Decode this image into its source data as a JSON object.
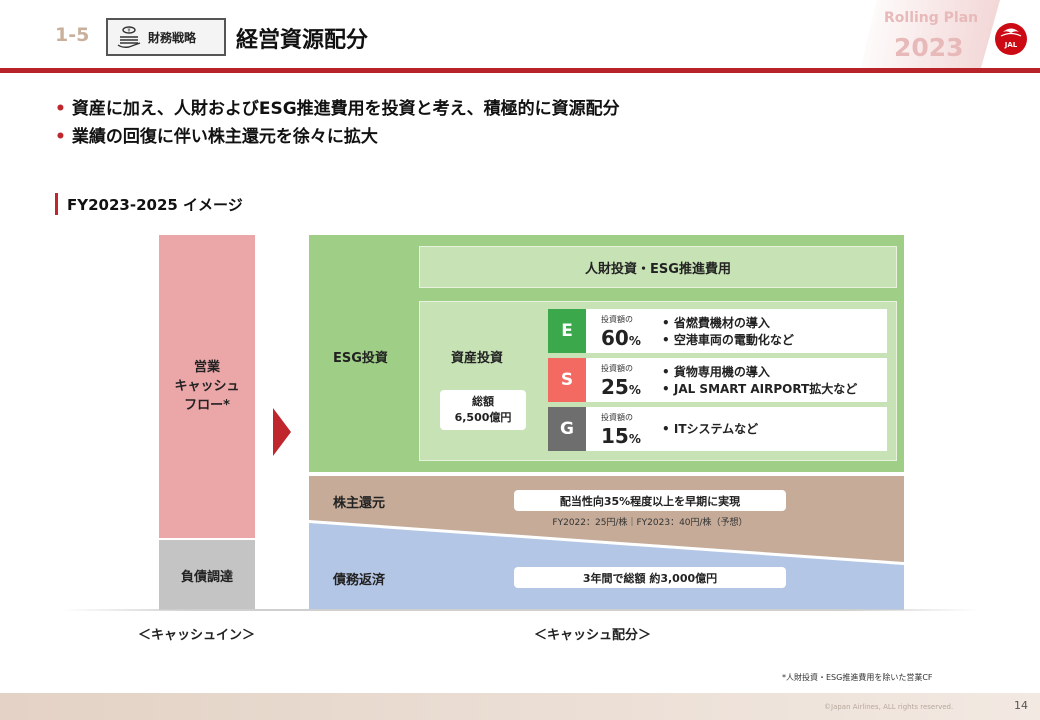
{
  "header": {
    "number": "1-5",
    "badge_label": "財務戦略",
    "title": "経営資源配分",
    "plan_line1": "Rolling Plan",
    "plan_line2": "2023",
    "logo_text": "JAL"
  },
  "bullets": [
    "資産に加え、人財およびESG推進費用を投資と考え、積極的に資源配分",
    "業績の回復に伴い株主還元を徐々に拡大"
  ],
  "section_title": "FY2023-2025 イメージ",
  "cash_in": {
    "operating_cf": "営業\nキャッシュ\nフロー*",
    "debt": "負債調達",
    "caption": "＜キャッシュイン＞"
  },
  "allocation": {
    "caption": "＜キャッシュ配分＞",
    "esg_label": "ESG投資",
    "hr_esg": "人財投資・ESG推進費用",
    "asset_label": "資産投資",
    "total_label": "総額",
    "total_value": "6,500億円",
    "rows": [
      {
        "letter": "E",
        "color": "#3aa84b",
        "pct_label": "投資額の",
        "pct": "60",
        "unit": "%",
        "items": [
          "• 省燃費機材の導入",
          "• 空港車両の電動化など"
        ]
      },
      {
        "letter": "S",
        "color": "#f26a61",
        "pct_label": "投資額の",
        "pct": "25",
        "unit": "%",
        "items": [
          "• 貨物専用機の導入",
          "• JAL SMART AIRPORT拡大など"
        ]
      },
      {
        "letter": "G",
        "color": "#6e6e6e",
        "pct_label": "投資額の",
        "pct": "15",
        "unit": "%",
        "items": [
          "• ITシステムなど"
        ]
      }
    ],
    "shareholder_label": "株主還元",
    "shareholder_text": "配当性向35%程度以上を早期に実現",
    "shareholder_note": "FY2022：25円/株｜FY2023：40円/株（予想）",
    "debt_label": "債務返済",
    "debt_text": "3年間で総額 約3,000億円"
  },
  "colors": {
    "accent": "#b8232a",
    "esg_green": "#9fcf86",
    "shareholder_brown": "#c5ab98",
    "debt_blue": "#b3c6e5",
    "opcf_pink": "#eba6a8"
  },
  "footnote": "*人財投資・ESG推進費用を除いた営業CF",
  "copyright": "©Japan Airlines, ALL rights reserved.",
  "page_number": "14"
}
